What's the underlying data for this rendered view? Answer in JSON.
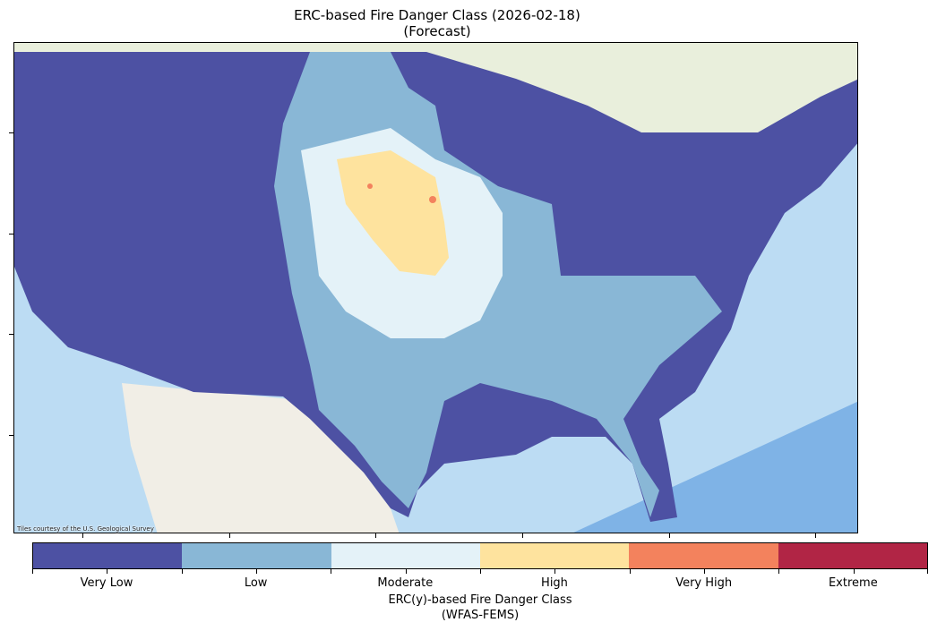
{
  "title": {
    "line1": "ERC-based Fire Danger Class (2026-02-18)",
    "line2": "(Forecast)"
  },
  "map": {
    "attribution": "Tiles courtesy of the U.S. Geological Survey"
  },
  "colorbar": {
    "classes": [
      {
        "label": "Very Low",
        "color": "#4d51a3"
      },
      {
        "label": "Low",
        "color": "#89b7d6"
      },
      {
        "label": "Moderate",
        "color": "#e4f2f8"
      },
      {
        "label": "High",
        "color": "#fee39e"
      },
      {
        "label": "Very High",
        "color": "#f3825d"
      },
      {
        "label": "Extreme",
        "color": "#b12545"
      }
    ],
    "label_line1": "ERC(y)-based Fire Danger Class",
    "label_line2": "(WFAS-FEMS)"
  }
}
